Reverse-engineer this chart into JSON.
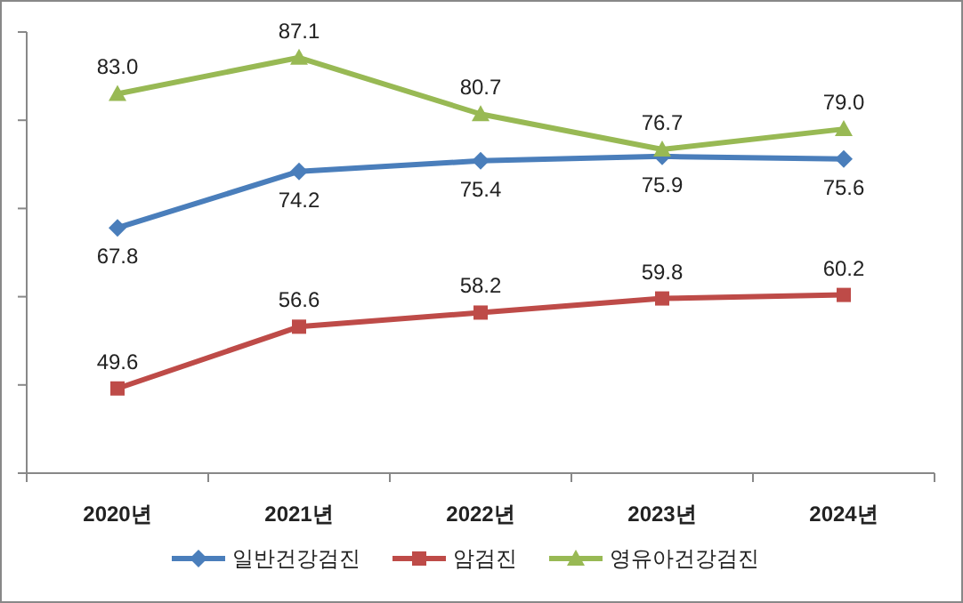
{
  "chart_data": {
    "type": "line",
    "categories": [
      "2020년",
      "2021년",
      "2022년",
      "2023년",
      "2024년"
    ],
    "series": [
      {
        "name": "일반건강검진",
        "color": "#4a7ebb",
        "marker": "diamond",
        "values": [
          67.8,
          74.2,
          75.4,
          75.9,
          75.6
        ],
        "value_labels": [
          "67.8",
          "74.2",
          "75.4",
          "75.9",
          "75.6"
        ]
      },
      {
        "name": "암검진",
        "color": "#be4b48",
        "marker": "square",
        "values": [
          49.6,
          56.6,
          58.2,
          59.8,
          60.2
        ],
        "value_labels": [
          "49.6",
          "56.6",
          "58.2",
          "59.8",
          "60.2"
        ]
      },
      {
        "name": "영유아건강검진",
        "color": "#98b954",
        "marker": "triangle",
        "values": [
          83.0,
          87.1,
          80.7,
          76.7,
          79.0
        ],
        "value_labels": [
          "83.0",
          "87.1",
          "80.7",
          "76.7",
          "79.0"
        ]
      }
    ],
    "ylim": [
      40,
      90
    ],
    "yticks": [
      {
        "value": 40,
        "label": null
      },
      {
        "value": 50,
        "label": null
      },
      {
        "value": 60,
        "label": null
      },
      {
        "value": 70,
        "label": null
      },
      {
        "value": 80,
        "label": null
      },
      {
        "value": 90,
        "label": null
      }
    ],
    "tick_labels": "x",
    "legend": "bottom",
    "grid": false
  }
}
